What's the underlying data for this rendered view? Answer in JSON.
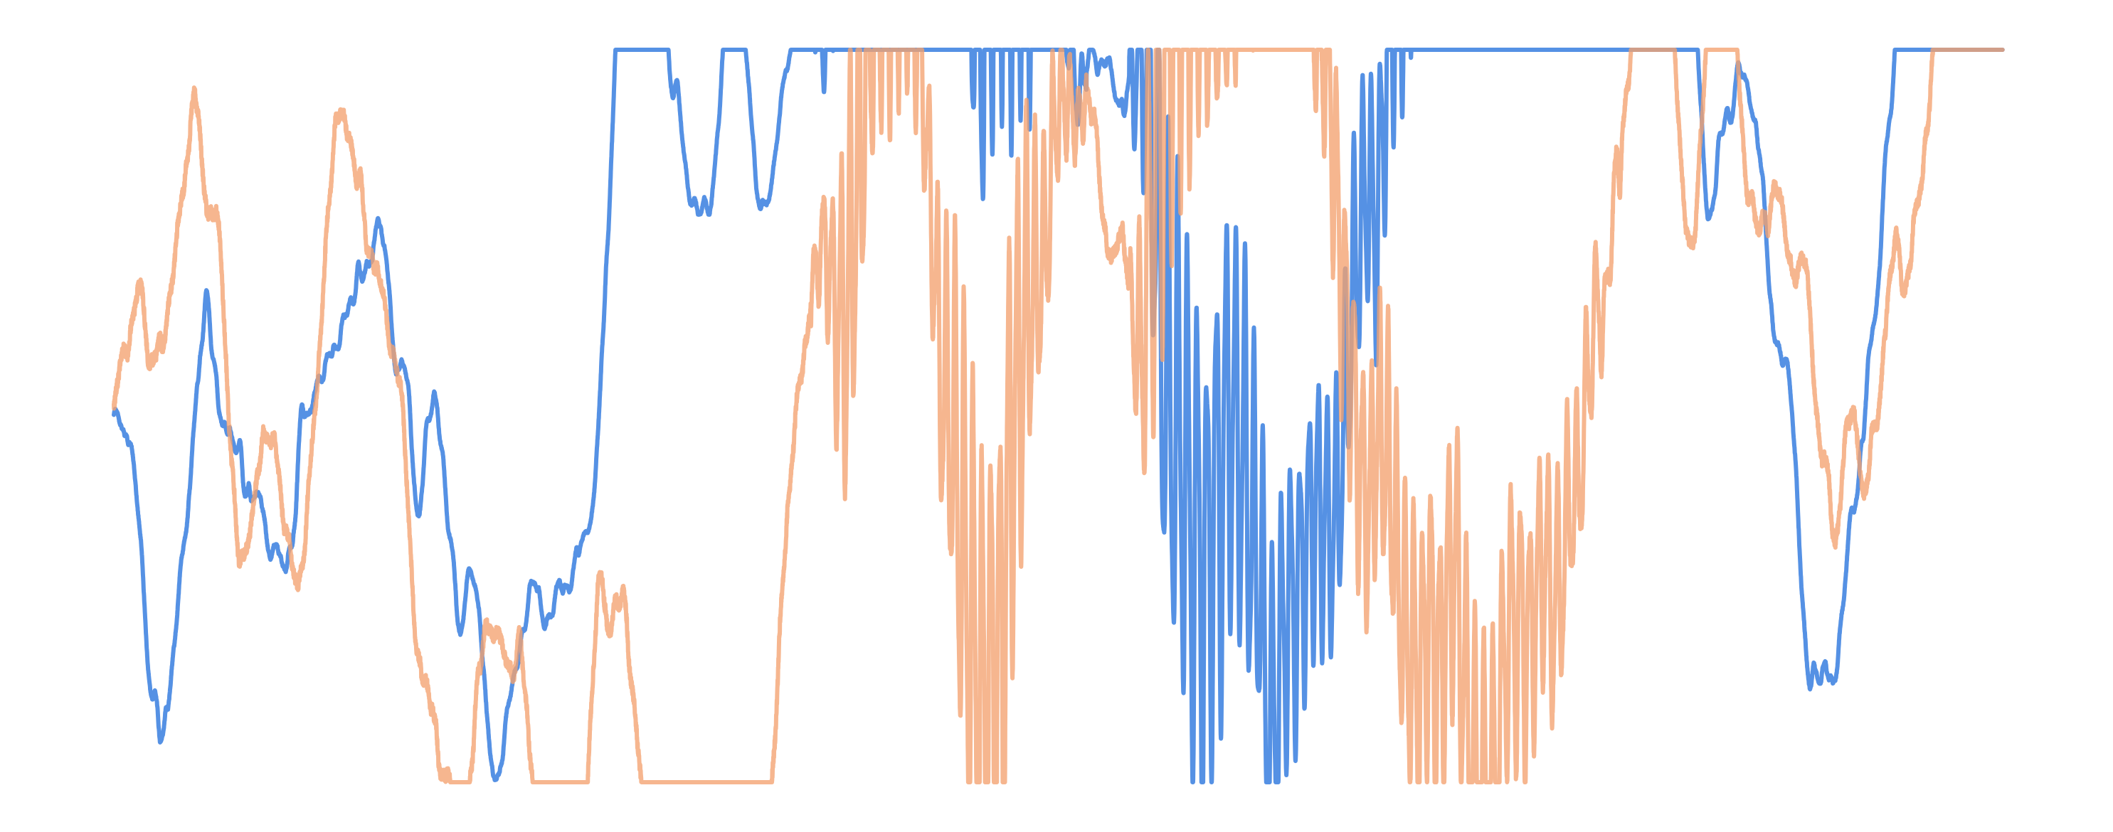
{
  "chart_data": {
    "type": "line",
    "title": "",
    "xlabel": "",
    "ylabel": "",
    "axes_visible": false,
    "grid": false,
    "legend": "none",
    "xlim": [
      0,
      2.4
    ],
    "ylim": [
      -1.0,
      1.0
    ],
    "x_step": 0.0002,
    "envelope_knots": [
      [
        0.0,
        0.05
      ],
      [
        0.85,
        0.05
      ],
      [
        0.9,
        0.12
      ],
      [
        0.915,
        0.35
      ],
      [
        0.935,
        0.65
      ],
      [
        0.96,
        0.7
      ],
      [
        1.0,
        0.55
      ],
      [
        1.03,
        0.25
      ],
      [
        1.05,
        0.45
      ],
      [
        1.1,
        0.95
      ],
      [
        1.13,
        0.9
      ],
      [
        1.18,
        0.35
      ],
      [
        1.22,
        0.12
      ],
      [
        1.26,
        0.07
      ],
      [
        1.29,
        0.1
      ],
      [
        1.32,
        0.75
      ],
      [
        1.38,
        0.78
      ],
      [
        1.42,
        0.68
      ],
      [
        1.46,
        0.55
      ],
      [
        1.52,
        0.42
      ],
      [
        1.58,
        0.38
      ],
      [
        1.64,
        0.45
      ],
      [
        1.72,
        0.48
      ],
      [
        1.8,
        0.42
      ],
      [
        1.86,
        0.3
      ],
      [
        1.9,
        0.12
      ],
      [
        1.95,
        0.06
      ],
      [
        2.4,
        0.06
      ]
    ],
    "series": [
      {
        "color": "#5591e4",
        "carrier_hz": 95,
        "drift_amp": 0.025,
        "hf_noise": 0.005,
        "seed": 11
      },
      {
        "color": "#f4a170",
        "carrier_hz": 95,
        "drift_amp": 0.032,
        "hf_noise": 0.03,
        "seed": 23,
        "opacity": 0.78
      }
    ]
  }
}
